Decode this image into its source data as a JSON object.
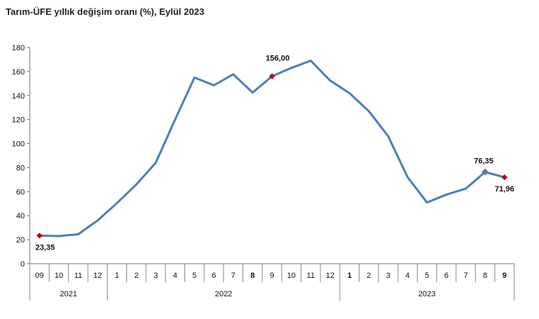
{
  "chart_data": {
    "type": "line",
    "title": "Tarım-ÜFE yıllık değişim oranı (%), Eylül 2023",
    "xlabel": "",
    "ylabel": "",
    "ylim": [
      0,
      180
    ],
    "yticks": [
      "0",
      "20",
      "40",
      "60",
      "80",
      "100",
      "120",
      "140",
      "160",
      "180"
    ],
    "x_tick_labels": [
      "09",
      "10",
      "11",
      "12",
      "1",
      "2",
      "3",
      "4",
      "5",
      "6",
      "7",
      "8",
      "9",
      "10",
      "11",
      "12",
      "1",
      "2",
      "3",
      "4",
      "5",
      "6",
      "7",
      "8",
      "9"
    ],
    "bold_ticks": [
      11,
      16,
      24
    ],
    "year_groups": [
      {
        "label": "2021",
        "count": 4
      },
      {
        "label": "2022",
        "count": 12
      },
      {
        "label": "2023",
        "count": 9
      }
    ],
    "grid": false,
    "legend": "none",
    "series": [
      {
        "color": "#4a7ebb",
        "values": [
          23.35,
          23.0,
          24.5,
          36.0,
          50.5,
          66.0,
          84.0,
          120.0,
          155.0,
          148.5,
          157.7,
          142.5,
          156.0,
          163.0,
          169.0,
          152.5,
          142.0,
          127.0,
          106.0,
          72.0,
          51.0,
          57.5,
          62.5,
          76.35,
          71.96
        ]
      }
    ],
    "annotations": [
      {
        "index": 0,
        "label": "23,35",
        "color": "#c0001a"
      },
      {
        "index": 12,
        "label": "156,00",
        "color": "#c0001a"
      },
      {
        "index": 23,
        "label": "76,35",
        "color": "#4a7ebb"
      },
      {
        "index": 24,
        "label": "71,96",
        "color": "#c0001a"
      }
    ]
  }
}
